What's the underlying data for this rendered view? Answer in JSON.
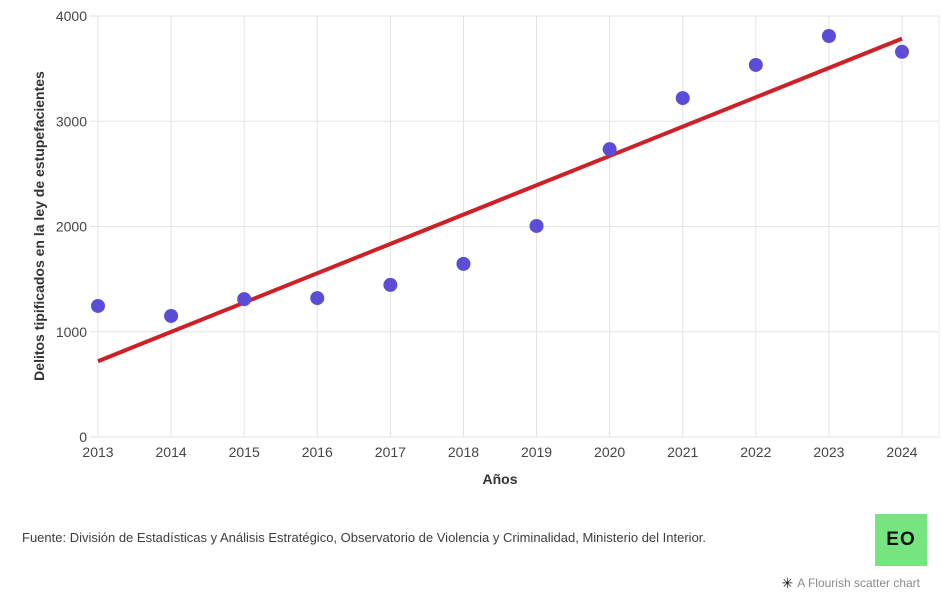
{
  "chart_data": {
    "type": "scatter",
    "title": "",
    "xlabel": "Años",
    "ylabel": "Delitos tipificados en la ley de estupefacientes",
    "x": [
      2013,
      2014,
      2015,
      2016,
      2017,
      2018,
      2019,
      2020,
      2021,
      2022,
      2023,
      2024
    ],
    "y": [
      1245,
      1150,
      1310,
      1320,
      1445,
      1645,
      2005,
      2735,
      3220,
      3535,
      3810,
      3660
    ],
    "series_name": "Delitos tipificados en la ley de estupefacientes",
    "xlim": [
      2013,
      2024
    ],
    "ylim": [
      0,
      4000
    ],
    "xticks": [
      2013,
      2014,
      2015,
      2016,
      2017,
      2018,
      2019,
      2020,
      2021,
      2022,
      2023,
      2024
    ],
    "yticks": [
      0,
      1000,
      2000,
      3000,
      4000
    ],
    "grid": true,
    "legend": "none",
    "point_color": "#5b4dd6",
    "point_radius": 7,
    "trendline": {
      "x1": 2013,
      "y1": 720,
      "x2": 2024,
      "y2": 3785,
      "color": "#ce2027",
      "width": 4
    }
  },
  "footer": {
    "source": "Fuente: División de Estadísticas y Análisis Estratégico, Observatorio de Violencia y Criminalidad, Ministerio del Interior."
  },
  "logo": {
    "text": "EO",
    "bg_color": "#77e57f"
  },
  "attribution": {
    "icon": "✳",
    "label": "A Flourish scatter chart"
  }
}
